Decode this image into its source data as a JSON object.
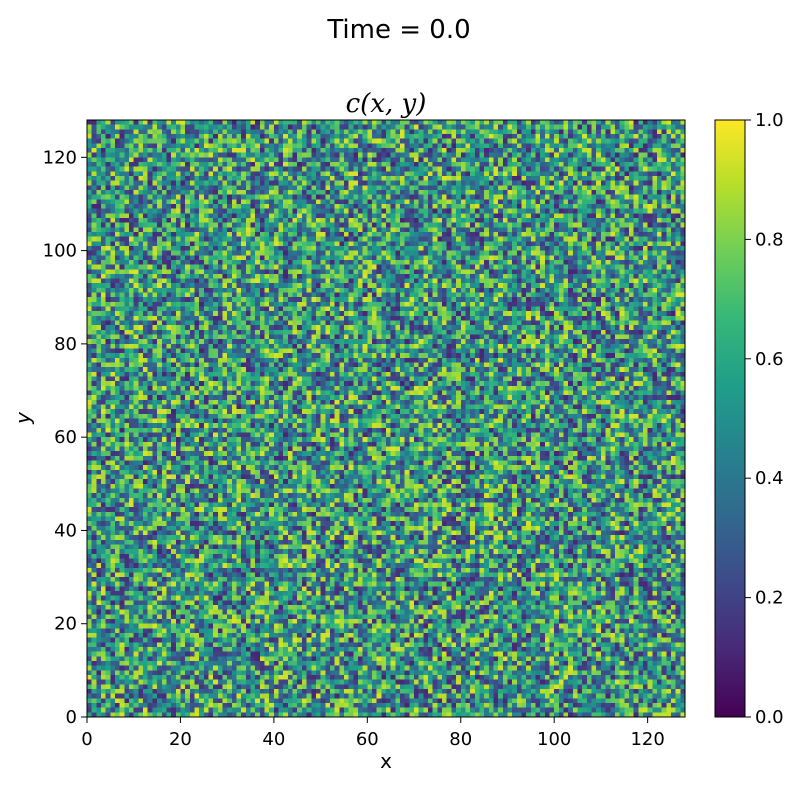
{
  "figure": {
    "suptitle": "Time = 0.0",
    "plot_title": "c(x, y)"
  },
  "chart_data": {
    "type": "heatmap",
    "title": "c(x, y)",
    "suptitle": "Time = 0.0",
    "xlabel": "x",
    "ylabel": "y",
    "xlim": [
      0,
      128
    ],
    "ylim": [
      0,
      128
    ],
    "grid_size": [
      128,
      128
    ],
    "x_ticks": [
      0,
      20,
      40,
      60,
      80,
      100,
      120
    ],
    "y_ticks": [
      0,
      20,
      40,
      60,
      80,
      100,
      120
    ],
    "x_tick_labels": [
      "0",
      "20",
      "40",
      "60",
      "80",
      "100",
      "120"
    ],
    "y_tick_labels": [
      "0",
      "20",
      "40",
      "60",
      "80",
      "100",
      "120"
    ],
    "colormap": "viridis",
    "color_range": [
      0.0,
      1.0
    ],
    "colorbar": {
      "ticks": [
        0.0,
        0.2,
        0.4,
        0.6,
        0.8,
        1.0
      ],
      "tick_labels": [
        "0.0",
        "0.2",
        "0.4",
        "0.6",
        "0.8",
        "1.0"
      ]
    },
    "values_description": "random field, values approximately 0.1–0.95",
    "grid": false
  },
  "colors": {
    "viridis_stops": [
      "#440154",
      "#482878",
      "#3e4989",
      "#31688e",
      "#26828e",
      "#1f9e89",
      "#35b779",
      "#6ece58",
      "#b5de2b",
      "#fde725"
    ]
  }
}
